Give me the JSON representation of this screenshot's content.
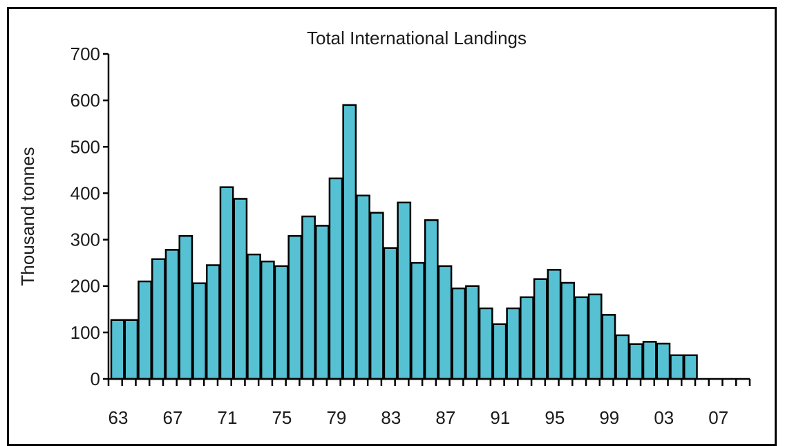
{
  "chart_data": {
    "type": "bar",
    "title": "Total International Landings",
    "xlabel": "",
    "ylabel": "Thousand tonnes",
    "ylim": [
      0,
      700
    ],
    "yticks": [
      "0",
      "100",
      "200",
      "300",
      "400",
      "500",
      "600",
      "700"
    ],
    "xticks": [
      "63",
      "67",
      "71",
      "75",
      "79",
      "83",
      "87",
      "91",
      "95",
      "99",
      "03",
      "07"
    ],
    "bar_color": "#56c1d3",
    "edge_color": "#000000",
    "grid": false,
    "categories": [
      "1963",
      "1964",
      "1965",
      "1966",
      "1967",
      "1968",
      "1969",
      "1970",
      "1971",
      "1972",
      "1973",
      "1974",
      "1975",
      "1976",
      "1977",
      "1978",
      "1979",
      "1980",
      "1981",
      "1982",
      "1983",
      "1984",
      "1985",
      "1986",
      "1987",
      "1988",
      "1989",
      "1990",
      "1991",
      "1992",
      "1993",
      "1994",
      "1995",
      "1996",
      "1997",
      "1998",
      "1999",
      "2000",
      "2001",
      "2002",
      "2003",
      "2004",
      "2005",
      "2006",
      "2007"
    ],
    "values": [
      127,
      127,
      210,
      258,
      278,
      308,
      206,
      245,
      413,
      388,
      268,
      253,
      243,
      308,
      350,
      330,
      432,
      590,
      395,
      358,
      282,
      380,
      250,
      342,
      243,
      195,
      200,
      152,
      118,
      152,
      176,
      215,
      235,
      207,
      176,
      182,
      138,
      94,
      75,
      80,
      76,
      51,
      51,
      0,
      0
    ]
  }
}
